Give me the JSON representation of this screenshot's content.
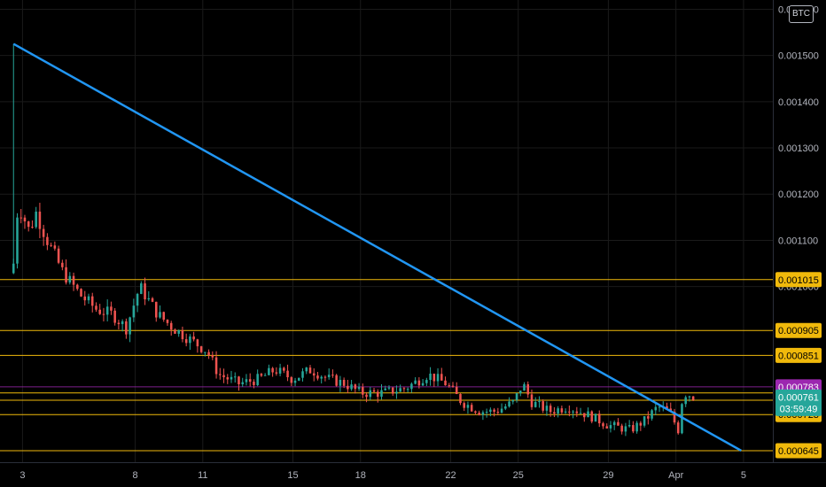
{
  "toolbar": {
    "currency_label": "BTC"
  },
  "chart_data": {
    "type": "candlestick",
    "title": "",
    "ylim": [
      0.00062,
      0.00162
    ],
    "y_ticks": [
      {
        "value": 0.0016,
        "label": "0.001600"
      },
      {
        "value": 0.0015,
        "label": "0.001500"
      },
      {
        "value": 0.0014,
        "label": "0.001400"
      },
      {
        "value": 0.0013,
        "label": "0.001300"
      },
      {
        "value": 0.0012,
        "label": "0.001200"
      },
      {
        "value": 0.0011,
        "label": "0.001100"
      },
      {
        "value": 0.001,
        "label": "0.001000"
      }
    ],
    "x_ticks": [
      {
        "day": 3,
        "label": "3"
      },
      {
        "day": 8,
        "label": "8"
      },
      {
        "day": 11,
        "label": "11"
      },
      {
        "day": 15,
        "label": "15"
      },
      {
        "day": 18,
        "label": "18"
      },
      {
        "day": 22,
        "label": "22"
      },
      {
        "day": 25,
        "label": "25"
      },
      {
        "day": 29,
        "label": "29"
      },
      {
        "day": 32,
        "label": "Apr"
      },
      {
        "day": 35,
        "label": "5"
      }
    ],
    "xlim": [
      2,
      36.3
    ],
    "colors": {
      "up": "#26a69a",
      "down": "#ef5350",
      "trendline": "#2196f3",
      "level": "#f0b90b",
      "current": "#26a69a",
      "marker": "#9c27b0"
    },
    "horizontal_levels": [
      {
        "value": 0.001015,
        "label": "0.001015"
      },
      {
        "value": 0.000905,
        "label": "0.000905"
      },
      {
        "value": 0.000851,
        "label": "0.000851"
      },
      {
        "value": 0.000754,
        "label": "0.000754"
      },
      {
        "value": 0.000723,
        "label": "0.000723"
      },
      {
        "value": 0.000645,
        "label": "0.000645"
      }
    ],
    "unlabeled_level": 0.00077,
    "marker_level": {
      "value": 0.000783,
      "label": "0.000783"
    },
    "current_price": {
      "value": 0.000761,
      "label": "0.000761",
      "countdown": "03:59:49"
    },
    "trendline": {
      "start": {
        "day": 2.6,
        "value": 0.001525
      },
      "end": {
        "day": 34.9,
        "value": 0.000645
      }
    },
    "price_path": [
      [
        2.6,
        0.00105
      ],
      [
        2.8,
        0.00118
      ],
      [
        3.3,
        0.00112
      ],
      [
        3.6,
        0.00116
      ],
      [
        4.1,
        0.0011
      ],
      [
        4.8,
        0.00103
      ],
      [
        5.6,
        0.00098
      ],
      [
        6.3,
        0.00095
      ],
      [
        7.0,
        0.00094
      ],
      [
        7.6,
        0.00091
      ],
      [
        8.2,
        0.001
      ],
      [
        9.0,
        0.00094
      ],
      [
        9.7,
        0.00091
      ],
      [
        10.3,
        0.00089
      ],
      [
        11.2,
        0.00086
      ],
      [
        11.7,
        0.00081
      ],
      [
        12.6,
        0.00079
      ],
      [
        13.5,
        0.0008
      ],
      [
        14.2,
        0.00082
      ],
      [
        15.0,
        0.0008
      ],
      [
        15.8,
        0.00082
      ],
      [
        16.6,
        0.0008
      ],
      [
        17.3,
        0.00079
      ],
      [
        18.0,
        0.00077
      ],
      [
        19.0,
        0.00077
      ],
      [
        20.0,
        0.00078
      ],
      [
        21.0,
        0.00081
      ],
      [
        21.8,
        0.00079
      ],
      [
        22.5,
        0.00075
      ],
      [
        23.3,
        0.00073
      ],
      [
        24.0,
        0.00073
      ],
      [
        24.8,
        0.00075
      ],
      [
        25.2,
        0.00079
      ],
      [
        25.6,
        0.00075
      ],
      [
        26.4,
        0.00073
      ],
      [
        27.2,
        0.00074
      ],
      [
        28.2,
        0.00072
      ],
      [
        29.0,
        0.0007
      ],
      [
        30.0,
        0.00069
      ],
      [
        30.6,
        0.00071
      ],
      [
        31.2,
        0.00074
      ],
      [
        31.7,
        0.00073
      ],
      [
        32.1,
        0.00069
      ],
      [
        32.25,
        0.00075
      ],
      [
        32.45,
        0.00077
      ],
      [
        32.8,
        0.000761
      ]
    ]
  }
}
